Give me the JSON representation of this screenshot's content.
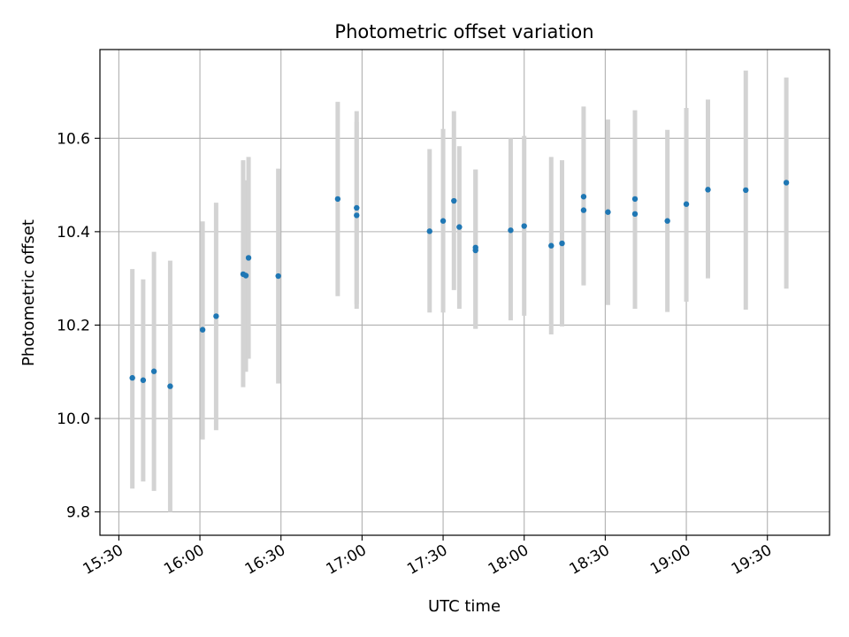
{
  "chart_data": {
    "type": "scatter",
    "title": "Photometric offset variation",
    "xlabel": "UTC time",
    "ylabel": "Photometric offset",
    "x_ticks": [
      "15:30",
      "16:00",
      "16:30",
      "17:00",
      "17:30",
      "18:00",
      "18:30",
      "19:00",
      "19:30"
    ],
    "y_ticks": [
      "9.8",
      "10.0",
      "10.2",
      "10.4",
      "10.6"
    ],
    "xlim": [
      "15:23",
      "19:53"
    ],
    "ylim": [
      9.75,
      10.79
    ],
    "grid": true,
    "marker_color": "#1f77b4",
    "errorbar_color": "#d3d3d3",
    "points": [
      {
        "t": "15:35",
        "y": 10.087,
        "lo": 9.85,
        "hi": 10.32
      },
      {
        "t": "15:39",
        "y": 10.082,
        "lo": 9.865,
        "hi": 10.298
      },
      {
        "t": "15:43",
        "y": 10.101,
        "lo": 9.845,
        "hi": 10.357
      },
      {
        "t": "15:49",
        "y": 10.069,
        "lo": 9.8,
        "hi": 10.338
      },
      {
        "t": "16:01",
        "y": 10.19,
        "lo": 9.955,
        "hi": 10.422
      },
      {
        "t": "16:06",
        "y": 10.219,
        "lo": 9.975,
        "hi": 10.462
      },
      {
        "t": "16:16",
        "y": 10.309,
        "lo": 10.067,
        "hi": 10.553
      },
      {
        "t": "16:17",
        "y": 10.306,
        "lo": 10.1,
        "hi": 10.51
      },
      {
        "t": "16:18",
        "y": 10.344,
        "lo": 10.128,
        "hi": 10.56
      },
      {
        "t": "16:29",
        "y": 10.305,
        "lo": 10.075,
        "hi": 10.535
      },
      {
        "t": "16:51",
        "y": 10.47,
        "lo": 10.262,
        "hi": 10.678
      },
      {
        "t": "16:58",
        "y": 10.435,
        "lo": 10.235,
        "hi": 10.635
      },
      {
        "t": "16:58",
        "y": 10.451,
        "lo": 10.245,
        "hi": 10.658
      },
      {
        "t": "17:25",
        "y": 10.401,
        "lo": 10.227,
        "hi": 10.577
      },
      {
        "t": "17:30",
        "y": 10.423,
        "lo": 10.227,
        "hi": 10.62
      },
      {
        "t": "17:34",
        "y": 10.466,
        "lo": 10.275,
        "hi": 10.658
      },
      {
        "t": "17:36",
        "y": 10.41,
        "lo": 10.235,
        "hi": 10.583
      },
      {
        "t": "17:42",
        "y": 10.36,
        "lo": 10.192,
        "hi": 10.533
      },
      {
        "t": "17:42",
        "y": 10.366,
        "lo": 10.192,
        "hi": 10.533
      },
      {
        "t": "17:55",
        "y": 10.403,
        "lo": 10.21,
        "hi": 10.6
      },
      {
        "t": "18:00",
        "y": 10.412,
        "lo": 10.22,
        "hi": 10.605
      },
      {
        "t": "18:10",
        "y": 10.37,
        "lo": 10.18,
        "hi": 10.56
      },
      {
        "t": "18:14",
        "y": 10.375,
        "lo": 10.197,
        "hi": 10.553
      },
      {
        "t": "18:22",
        "y": 10.475,
        "lo": 10.285,
        "hi": 10.668
      },
      {
        "t": "18:22",
        "y": 10.446,
        "lo": 10.287,
        "hi": 10.605
      },
      {
        "t": "18:31",
        "y": 10.442,
        "lo": 10.243,
        "hi": 10.64
      },
      {
        "t": "18:41",
        "y": 10.438,
        "lo": 10.235,
        "hi": 10.64
      },
      {
        "t": "18:41",
        "y": 10.47,
        "lo": 10.285,
        "hi": 10.66
      },
      {
        "t": "18:53",
        "y": 10.423,
        "lo": 10.228,
        "hi": 10.618
      },
      {
        "t": "19:00",
        "y": 10.459,
        "lo": 10.25,
        "hi": 10.665
      },
      {
        "t": "19:08",
        "y": 10.49,
        "lo": 10.3,
        "hi": 10.683
      },
      {
        "t": "19:22",
        "y": 10.489,
        "lo": 10.233,
        "hi": 10.745
      },
      {
        "t": "19:37",
        "y": 10.505,
        "lo": 10.278,
        "hi": 10.73
      }
    ]
  }
}
